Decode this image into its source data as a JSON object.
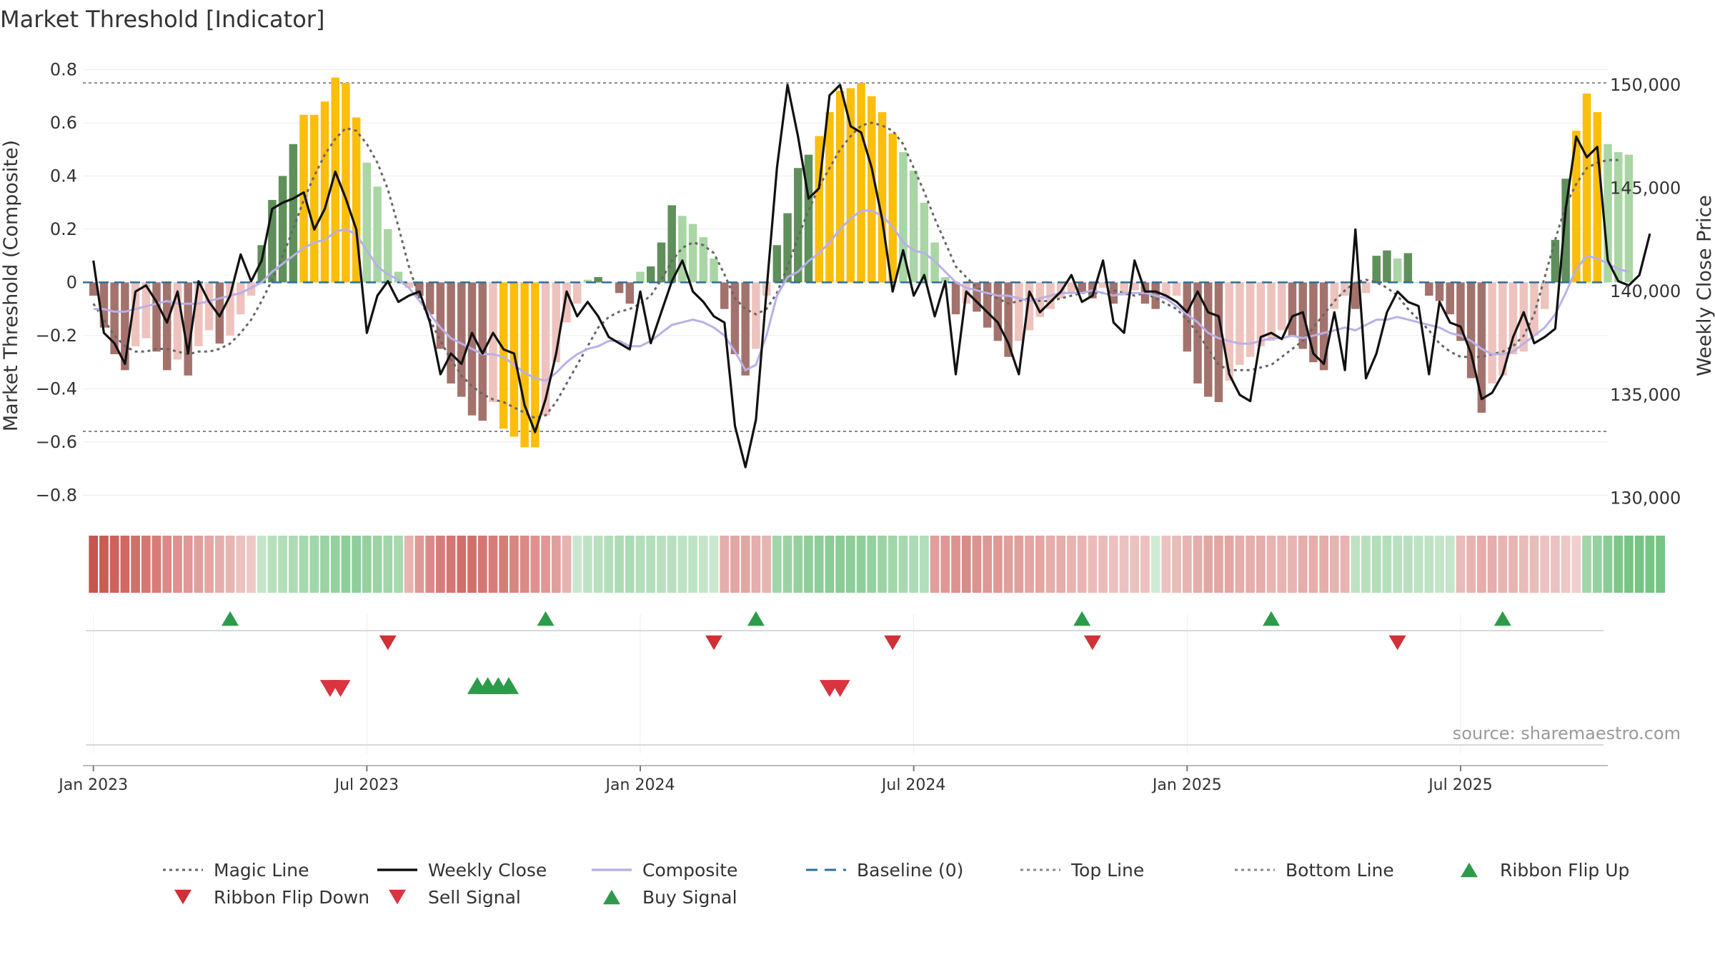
{
  "chart_data": {
    "type": "bar",
    "title": "Market Threshold [Indicator]",
    "ylabel_left": "Market Threshold (Composite)",
    "ylabel_right": "Weekly Close Price",
    "source": "source: sharemaestro.com",
    "ylim_left": [
      -0.85,
      0.82
    ],
    "ylim_right": [
      129500,
      151000
    ],
    "yticks_left": [
      0.8,
      0.6,
      0.4,
      0.2,
      0,
      -0.2,
      -0.4,
      -0.6,
      -0.8
    ],
    "yticks_left_labels": [
      "0.8",
      "0.6",
      "0.4",
      "0.2",
      "0",
      "−0.2",
      "−0.4",
      "−0.6",
      "−0.8"
    ],
    "yticks_right": [
      150000,
      145000,
      140000,
      135000,
      130000
    ],
    "yticks_right_labels": [
      "150,000",
      "145,000",
      "140,000",
      "135,000",
      "130,000"
    ],
    "xlim": [
      -1,
      144
    ],
    "xticks": [
      {
        "label": "Jan 2023",
        "x": 0
      },
      {
        "label": "Jul 2023",
        "x": 26
      },
      {
        "label": "Jan 2024",
        "x": 52
      },
      {
        "label": "Jul 2024",
        "x": 78
      },
      {
        "label": "Jan 2025",
        "x": 104
      },
      {
        "label": "Jul 2025",
        "x": 130
      }
    ],
    "top_line": 0.75,
    "bottom_line": -0.56,
    "baseline": 0,
    "composite_bars": [
      -0.05,
      -0.17,
      -0.27,
      -0.33,
      -0.24,
      -0.21,
      -0.26,
      -0.33,
      -0.29,
      -0.35,
      -0.24,
      -0.18,
      -0.23,
      -0.2,
      -0.12,
      -0.05,
      0.14,
      0.31,
      0.4,
      0.52,
      0.63,
      0.63,
      0.68,
      0.77,
      0.75,
      0.62,
      0.45,
      0.36,
      0.2,
      0.04,
      -0.02,
      -0.05,
      -0.12,
      -0.25,
      -0.38,
      -0.43,
      -0.5,
      -0.52,
      -0.45,
      -0.55,
      -0.58,
      -0.62,
      -0.62,
      -0.5,
      -0.3,
      -0.15,
      -0.08,
      0.01,
      0.02,
      0.0,
      -0.04,
      -0.08,
      0.04,
      0.06,
      0.15,
      0.29,
      0.25,
      0.22,
      0.17,
      0.09,
      -0.1,
      -0.27,
      -0.35,
      -0.25,
      -0.05,
      0.14,
      0.26,
      0.43,
      0.48,
      0.55,
      0.64,
      0.72,
      0.73,
      0.75,
      0.7,
      0.64,
      0.56,
      0.49,
      0.42,
      0.3,
      0.15,
      0.02,
      -0.12,
      -0.08,
      -0.11,
      -0.17,
      -0.22,
      -0.28,
      -0.22,
      -0.18,
      -0.13,
      -0.1,
      -0.06,
      -0.04,
      -0.04,
      -0.06,
      -0.02,
      -0.08,
      -0.05,
      -0.03,
      -0.08,
      -0.1,
      -0.06,
      -0.05,
      -0.26,
      -0.38,
      -0.43,
      -0.45,
      -0.37,
      -0.31,
      -0.28,
      -0.24,
      -0.22,
      -0.18,
      -0.2,
      -0.25,
      -0.3,
      -0.33,
      -0.1,
      -0.05,
      -0.1,
      -0.04,
      0.1,
      0.12,
      0.09,
      0.11,
      0.0,
      -0.05,
      -0.07,
      -0.12,
      -0.22,
      -0.36,
      -0.49,
      -0.38,
      -0.35,
      -0.27,
      -0.26,
      -0.2,
      -0.1,
      0.16,
      0.39,
      0.57,
      0.71,
      0.64,
      0.52,
      0.49,
      0.48
    ],
    "weekly_close": [
      141500,
      138000,
      137500,
      136500,
      140000,
      140300,
      139500,
      138500,
      140000,
      137000,
      140500,
      139500,
      138800,
      139800,
      141800,
      140500,
      141500,
      144000,
      144300,
      144500,
      144800,
      143000,
      144000,
      145800,
      144500,
      143000,
      138000,
      139800,
      140500,
      139500,
      139800,
      140000,
      138500,
      136000,
      137000,
      136500,
      138000,
      137000,
      138000,
      137200,
      137000,
      134500,
      133200,
      134800,
      137000,
      140000,
      138800,
      139500,
      138800,
      137800,
      137500,
      137200,
      140000,
      137500,
      139000,
      140500,
      141500,
      140000,
      139500,
      138800,
      138500,
      133500,
      131500,
      133800,
      140000,
      146000,
      150000,
      147500,
      144500,
      145000,
      149500,
      150000,
      148000,
      147700,
      146000,
      143500,
      140000,
      142000,
      139800,
      140800,
      138800,
      140500,
      136000,
      140000,
      139500,
      139000,
      138500,
      137500,
      136000,
      140000,
      139000,
      139500,
      140000,
      140800,
      139500,
      139800,
      141500,
      138500,
      138000,
      141500,
      140000,
      140000,
      139800,
      139500,
      139000,
      140000,
      139000,
      138800,
      136000,
      135000,
      134700,
      137800,
      138000,
      137700,
      138800,
      139000,
      137000,
      136500,
      139000,
      136200,
      143000,
      135800,
      137000,
      139000,
      140000,
      139500,
      139300,
      136000,
      139500,
      138500,
      138300,
      137000,
      134800,
      135100,
      136000,
      137800,
      139000,
      137500,
      137800,
      138200,
      144000,
      147500,
      146500,
      147000,
      141500,
      140500,
      140300,
      140800,
      142800
    ],
    "composite_line": [
      -0.1,
      -0.1,
      -0.11,
      -0.11,
      -0.1,
      -0.09,
      -0.08,
      -0.07,
      -0.08,
      -0.08,
      -0.08,
      -0.07,
      -0.06,
      -0.05,
      -0.04,
      -0.02,
      0.0,
      0.04,
      0.07,
      0.1,
      0.13,
      0.15,
      0.16,
      0.19,
      0.2,
      0.18,
      0.12,
      0.06,
      0.03,
      0.01,
      -0.02,
      -0.07,
      -0.12,
      -0.17,
      -0.21,
      -0.23,
      -0.25,
      -0.27,
      -0.27,
      -0.28,
      -0.31,
      -0.34,
      -0.36,
      -0.37,
      -0.34,
      -0.3,
      -0.27,
      -0.25,
      -0.24,
      -0.22,
      -0.22,
      -0.24,
      -0.24,
      -0.22,
      -0.19,
      -0.16,
      -0.15,
      -0.14,
      -0.15,
      -0.17,
      -0.2,
      -0.26,
      -0.33,
      -0.31,
      -0.2,
      -0.05,
      0.02,
      0.04,
      0.08,
      0.11,
      0.15,
      0.2,
      0.24,
      0.27,
      0.27,
      0.25,
      0.21,
      0.15,
      0.12,
      0.11,
      0.08,
      0.04,
      0.0,
      -0.02,
      -0.03,
      -0.04,
      -0.05,
      -0.05,
      -0.06,
      -0.07,
      -0.06,
      -0.05,
      -0.04,
      -0.04,
      -0.04,
      -0.03,
      -0.04,
      -0.05,
      -0.04,
      -0.04,
      -0.04,
      -0.05,
      -0.06,
      -0.09,
      -0.12,
      -0.15,
      -0.19,
      -0.21,
      -0.22,
      -0.23,
      -0.23,
      -0.22,
      -0.21,
      -0.21,
      -0.2,
      -0.21,
      -0.2,
      -0.19,
      -0.18,
      -0.17,
      -0.18,
      -0.16,
      -0.14,
      -0.14,
      -0.13,
      -0.14,
      -0.15,
      -0.16,
      -0.17,
      -0.19,
      -0.2,
      -0.22,
      -0.25,
      -0.27,
      -0.27,
      -0.26,
      -0.23,
      -0.2,
      -0.17,
      -0.12,
      -0.04,
      0.05,
      0.1,
      0.09,
      0.07,
      0.05,
      0.04
    ],
    "magic_line": [
      -0.08,
      -0.14,
      -0.2,
      -0.24,
      -0.26,
      -0.26,
      -0.25,
      -0.25,
      -0.26,
      -0.27,
      -0.26,
      -0.26,
      -0.25,
      -0.23,
      -0.19,
      -0.14,
      -0.07,
      0.01,
      0.1,
      0.2,
      0.31,
      0.4,
      0.48,
      0.54,
      0.58,
      0.57,
      0.52,
      0.45,
      0.35,
      0.21,
      0.06,
      -0.06,
      -0.14,
      -0.22,
      -0.29,
      -0.35,
      -0.39,
      -0.42,
      -0.44,
      -0.45,
      -0.47,
      -0.49,
      -0.51,
      -0.5,
      -0.45,
      -0.38,
      -0.31,
      -0.24,
      -0.17,
      -0.13,
      -0.11,
      -0.1,
      -0.08,
      -0.05,
      0.01,
      0.08,
      0.13,
      0.15,
      0.14,
      0.11,
      0.03,
      -0.06,
      -0.1,
      -0.12,
      -0.1,
      -0.04,
      0.06,
      0.17,
      0.27,
      0.36,
      0.43,
      0.5,
      0.55,
      0.59,
      0.6,
      0.59,
      0.57,
      0.52,
      0.43,
      0.34,
      0.24,
      0.15,
      0.06,
      0.02,
      -0.02,
      -0.04,
      -0.06,
      -0.08,
      -0.07,
      -0.06,
      -0.07,
      -0.07,
      -0.06,
      -0.05,
      -0.04,
      -0.04,
      -0.04,
      -0.03,
      -0.04,
      -0.05,
      -0.04,
      -0.06,
      -0.08,
      -0.1,
      -0.14,
      -0.19,
      -0.25,
      -0.31,
      -0.33,
      -0.33,
      -0.33,
      -0.32,
      -0.31,
      -0.28,
      -0.25,
      -0.22,
      -0.17,
      -0.12,
      -0.07,
      -0.03,
      0.0,
      0.01,
      0.0,
      -0.02,
      -0.05,
      -0.1,
      -0.14,
      -0.18,
      -0.23,
      -0.26,
      -0.28,
      -0.28,
      -0.28,
      -0.27,
      -0.26,
      -0.24,
      -0.2,
      -0.12,
      0.02,
      0.16,
      0.29,
      0.37,
      0.43,
      0.45,
      0.46,
      0.46
    ],
    "ribbon": [
      -1.0,
      -0.95,
      -0.9,
      -0.85,
      -0.8,
      -0.75,
      -0.7,
      -0.6,
      -0.55,
      -0.5,
      -0.45,
      -0.4,
      -0.35,
      -0.3,
      -0.2,
      -0.15,
      0.25,
      0.35,
      0.4,
      0.45,
      0.5,
      0.55,
      0.6,
      0.65,
      0.7,
      0.7,
      0.65,
      0.6,
      0.55,
      0.5,
      -0.3,
      -0.5,
      -0.6,
      -0.7,
      -0.75,
      -0.8,
      -0.8,
      -0.75,
      -0.7,
      -0.7,
      -0.65,
      -0.6,
      -0.55,
      -0.5,
      -0.45,
      -0.3,
      0.2,
      0.3,
      0.35,
      0.4,
      0.45,
      0.45,
      0.4,
      0.4,
      0.35,
      0.35,
      0.3,
      0.3,
      0.25,
      0.2,
      -0.35,
      -0.4,
      -0.4,
      -0.35,
      -0.3,
      0.55,
      0.6,
      0.65,
      0.7,
      0.72,
      0.75,
      0.75,
      0.72,
      0.7,
      0.65,
      0.6,
      0.55,
      0.5,
      0.45,
      0.4,
      -0.45,
      -0.5,
      -0.55,
      -0.6,
      -0.55,
      -0.5,
      -0.5,
      -0.45,
      -0.45,
      -0.4,
      -0.4,
      -0.35,
      -0.35,
      -0.3,
      -0.3,
      -0.25,
      -0.25,
      -0.2,
      -0.2,
      -0.2,
      -0.2,
      0.15,
      -0.2,
      -0.25,
      -0.3,
      -0.35,
      -0.4,
      -0.4,
      -0.4,
      -0.35,
      -0.35,
      -0.35,
      -0.3,
      -0.3,
      -0.3,
      -0.35,
      -0.35,
      -0.35,
      -0.3,
      -0.3,
      0.3,
      0.35,
      0.4,
      0.4,
      0.35,
      0.35,
      0.3,
      0.3,
      0.25,
      0.25,
      -0.25,
      -0.3,
      -0.35,
      -0.35,
      -0.3,
      -0.3,
      -0.25,
      -0.25,
      -0.2,
      -0.2,
      -0.15,
      -0.1,
      0.55,
      0.65,
      0.75,
      0.85,
      0.9,
      0.9,
      0.9,
      0.9
    ],
    "ribbon_flip_up": [
      13,
      43,
      63,
      94,
      112,
      134
    ],
    "ribbon_flip_down": [
      28,
      59,
      76,
      95,
      124
    ],
    "sell_signals": [
      22.5,
      23.5,
      70,
      71
    ],
    "buy_signals": [
      36.5,
      37.5,
      38.5,
      39.5
    ],
    "legend": [
      {
        "label": "Magic Line",
        "kind": "dotline",
        "color": "#666666"
      },
      {
        "label": "Weekly Close",
        "kind": "solid",
        "color": "#111111"
      },
      {
        "label": "Composite",
        "kind": "solid",
        "color": "#b8b0e8"
      },
      {
        "label": "Baseline (0)",
        "kind": "dashed",
        "color": "#2a6fa0"
      },
      {
        "label": "Top Line",
        "kind": "dotline",
        "color": "#888888"
      },
      {
        "label": "Bottom Line",
        "kind": "dotline",
        "color": "#888888"
      },
      {
        "label": "Ribbon Flip Up",
        "kind": "tri-up",
        "color": "#2e9b4b"
      },
      {
        "label": "Ribbon Flip Down",
        "kind": "tri-down",
        "color": "#d03036"
      },
      {
        "label": "Sell Signal",
        "kind": "tri-down",
        "color": "#d9343f"
      },
      {
        "label": "Buy Signal",
        "kind": "tri-up",
        "color": "#2e9b4b"
      }
    ],
    "colors": {
      "pos_strong": "#5f8f5a",
      "pos_light": "#a9d6a4",
      "neg_strong": "#a4726c",
      "neg_light": "#eec3bd",
      "extreme": "#fbbe0b",
      "price": "#111111",
      "composite": "#b8b0e8",
      "magic": "#666666",
      "baseline": "#2a6fa0",
      "threshold": "#888888",
      "up_marker": "#2e9b4b",
      "down_marker": "#d03036",
      "ribbon_pos": "#6cbf7a",
      "ribbon_neg": "#c9544f"
    }
  }
}
